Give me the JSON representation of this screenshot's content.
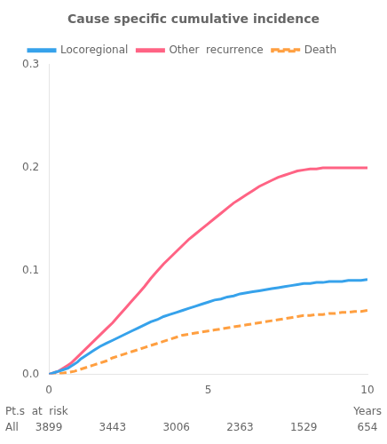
{
  "chart_data": {
    "type": "line",
    "title": "Cause specific cumulative incidence",
    "x_label": "Years",
    "xlim": [
      0,
      10
    ],
    "xticks": [
      0,
      5,
      10
    ],
    "ylim": [
      0,
      0.3
    ],
    "yticks": [
      {
        "value": 0.0,
        "label": "0.0"
      },
      0.1,
      0.2,
      0.3
    ],
    "grid": false,
    "legend": "upper left",
    "series": [
      {
        "name": "Locoregional",
        "line_style": "solid",
        "x": [
          0,
          0.1,
          0.2,
          0.3,
          0.4,
          0.5,
          0.6,
          0.7,
          0.8,
          0.9,
          1.0,
          1.2,
          1.4,
          1.6,
          1.8,
          2.0,
          2.2,
          2.4,
          2.6,
          2.8,
          3.0,
          3.2,
          3.4,
          3.6,
          3.8,
          4.0,
          4.2,
          4.4,
          4.6,
          4.8,
          5.0,
          5.2,
          5.4,
          5.6,
          5.8,
          6.0,
          6.2,
          6.4,
          6.6,
          6.8,
          7.0,
          7.2,
          7.4,
          7.6,
          7.8,
          8.0,
          8.2,
          8.4,
          8.6,
          8.8,
          9.0,
          9.2,
          9.4,
          9.6,
          9.8,
          10.0
        ],
        "values": [
          0.0,
          0.001,
          0.002,
          0.003,
          0.004,
          0.005,
          0.006,
          0.008,
          0.01,
          0.012,
          0.015,
          0.019,
          0.023,
          0.027,
          0.03,
          0.033,
          0.036,
          0.039,
          0.042,
          0.045,
          0.048,
          0.051,
          0.053,
          0.056,
          0.058,
          0.06,
          0.062,
          0.064,
          0.066,
          0.068,
          0.07,
          0.072,
          0.073,
          0.075,
          0.076,
          0.078,
          0.079,
          0.08,
          0.081,
          0.082,
          0.083,
          0.084,
          0.085,
          0.086,
          0.087,
          0.088,
          0.088,
          0.089,
          0.089,
          0.09,
          0.09,
          0.09,
          0.091,
          0.091,
          0.091,
          0.092
        ]
      },
      {
        "name": "Other  recurrence",
        "line_style": "solid",
        "x": [
          0,
          0.1,
          0.2,
          0.3,
          0.4,
          0.5,
          0.6,
          0.7,
          0.8,
          0.9,
          1.0,
          1.2,
          1.4,
          1.6,
          1.8,
          2.0,
          2.2,
          2.4,
          2.6,
          2.8,
          3.0,
          3.2,
          3.4,
          3.6,
          3.8,
          4.0,
          4.2,
          4.4,
          4.6,
          4.8,
          5.0,
          5.2,
          5.4,
          5.6,
          5.8,
          6.0,
          6.2,
          6.4,
          6.6,
          6.8,
          7.0,
          7.2,
          7.4,
          7.6,
          7.8,
          8.0,
          8.2,
          8.4,
          8.6,
          8.8,
          9.0,
          9.2,
          9.4,
          9.6,
          9.8,
          10.0
        ],
        "values": [
          0.0,
          0.001,
          0.002,
          0.003,
          0.005,
          0.007,
          0.009,
          0.011,
          0.014,
          0.017,
          0.02,
          0.026,
          0.032,
          0.038,
          0.044,
          0.05,
          0.057,
          0.064,
          0.071,
          0.078,
          0.085,
          0.093,
          0.1,
          0.107,
          0.113,
          0.119,
          0.125,
          0.131,
          0.136,
          0.141,
          0.146,
          0.151,
          0.156,
          0.161,
          0.166,
          0.17,
          0.174,
          0.178,
          0.182,
          0.185,
          0.188,
          0.191,
          0.193,
          0.195,
          0.197,
          0.198,
          0.199,
          0.199,
          0.2,
          0.2,
          0.2,
          0.2,
          0.2,
          0.2,
          0.2,
          0.2
        ]
      },
      {
        "name": "Death",
        "line_style": "dashed",
        "x": [
          0,
          0.2,
          0.4,
          0.6,
          0.8,
          1.0,
          1.2,
          1.4,
          1.6,
          1.8,
          2.0,
          2.2,
          2.4,
          2.6,
          2.8,
          3.0,
          3.2,
          3.4,
          3.6,
          3.8,
          4.0,
          4.2,
          4.4,
          4.6,
          4.8,
          5.0,
          5.2,
          5.4,
          5.6,
          5.8,
          6.0,
          6.2,
          6.4,
          6.6,
          6.8,
          7.0,
          7.2,
          7.4,
          7.6,
          7.8,
          8.0,
          8.2,
          8.4,
          8.6,
          8.8,
          9.0,
          9.2,
          9.4,
          9.6,
          9.8,
          10.0
        ],
        "values": [
          0.0,
          0.0,
          0.001,
          0.002,
          0.003,
          0.005,
          0.007,
          0.009,
          0.011,
          0.013,
          0.016,
          0.018,
          0.02,
          0.022,
          0.024,
          0.026,
          0.028,
          0.03,
          0.032,
          0.034,
          0.036,
          0.038,
          0.039,
          0.04,
          0.041,
          0.042,
          0.043,
          0.044,
          0.045,
          0.046,
          0.047,
          0.048,
          0.049,
          0.05,
          0.051,
          0.052,
          0.053,
          0.054,
          0.055,
          0.056,
          0.057,
          0.057,
          0.058,
          0.058,
          0.059,
          0.059,
          0.06,
          0.06,
          0.061,
          0.061,
          0.062
        ]
      }
    ],
    "risk_table": {
      "title": "Pt.s  at  risk",
      "row": "All",
      "x": [
        0,
        2,
        4,
        6,
        8,
        10
      ],
      "values": [
        3899,
        3443,
        3006,
        2363,
        1529,
        654
      ]
    }
  }
}
